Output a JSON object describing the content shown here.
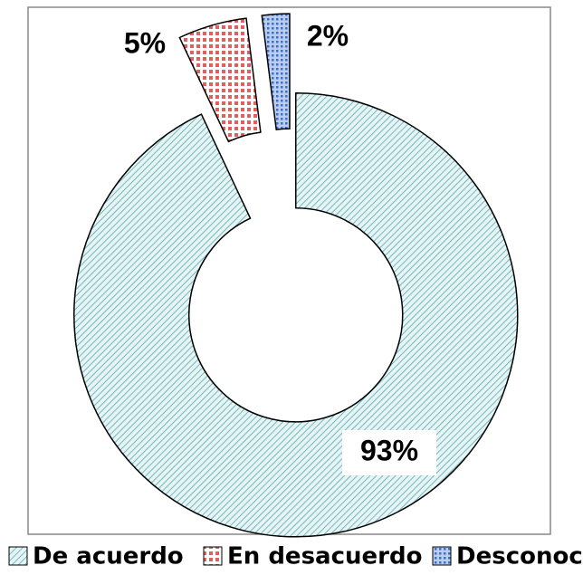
{
  "chart_data": {
    "type": "donut",
    "categories": [
      "De acuerdo",
      "En desacuerdo",
      "Desconoce"
    ],
    "values": [
      93,
      5,
      2
    ],
    "value_labels": [
      "93%",
      "5%",
      "2%"
    ],
    "colors": [
      "#a9d8db",
      "#e88a8a",
      "#6f95d8"
    ]
  }
}
